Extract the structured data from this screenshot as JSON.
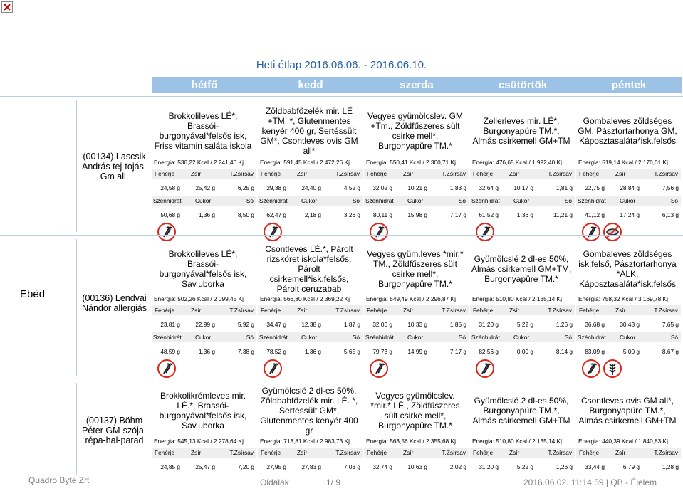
{
  "header": {
    "title": "Heti étlap 2016.06.06. - 2016.06.10."
  },
  "days": [
    "hétfő",
    "kedd",
    "szerda",
    "csütörtök",
    "péntek"
  ],
  "section_label": "Ebéd",
  "nutrient_labels": {
    "row1": [
      "Fehérje",
      "Zsír",
      "T.Zsírsav"
    ],
    "row2": [
      "Szénhidrát",
      "Cukor",
      "Só"
    ]
  },
  "menus": [
    {
      "name": [
        "(00134) Lascsik",
        "András tej-tojás-",
        "Gm all."
      ],
      "dishes": [
        [
          "Brokkolileves LÉ*,",
          "Brassói-",
          "burgonyával*felsős isk,",
          "Friss vitamin saláta iskola"
        ],
        [
          "Zöldbabfőzelék mir. LÉ",
          "+TM. *, Glutenmentes",
          "kenyér 400 gr, Sertéssült",
          "GM*, Csontleves ovis GM",
          "all*"
        ],
        [
          "Vegyes gyümölcslev. GM",
          "+Tm., Zöldfűszeres sült",
          "csirke mell*,",
          "Burgonyapüre TM.*"
        ],
        [
          "Zellerleves mir. LÉ*,",
          "Burgonyapüre TM.*,",
          "Almás csirkemell GM+TM"
        ],
        [
          "Gombaleves zöldséges",
          "GM, Pásztortarhonya GM,",
          "Káposztasaláta*isk.felsős"
        ]
      ],
      "energy": [
        "Energia: 536,22 Kcal / 2 241,40 Kj",
        "Energia: 591,45 Kcal / 2 472,26 Kj",
        "Energia: 550,41 Kcal / 2 300,71 Kj",
        "Energia: 476,65 Kcal / 1 992,40 Kj",
        "Energia: 519,14 Kcal / 2 170,01 Kj"
      ],
      "row1": [
        [
          "24,58 g",
          "25,42 g",
          "6,25 g"
        ],
        [
          "29,38 g",
          "24,40 g",
          "4,52 g"
        ],
        [
          "32,02 g",
          "10,21 g",
          "1,83 g"
        ],
        [
          "32,64 g",
          "10,17 g",
          "1,81 g"
        ],
        [
          "22,75 g",
          "28,84 g",
          "7,56 g"
        ]
      ],
      "row2": [
        [
          "50,68 g",
          "1,36 g",
          "8,50 g"
        ],
        [
          "62,47 g",
          "2,18 g",
          "3,26 g"
        ],
        [
          "80,11 g",
          "15,98 g",
          "7,17 g"
        ],
        [
          "61,52 g",
          "1,36 g",
          "11,21 g"
        ],
        [
          "41,12 g",
          "17,24 g",
          "6,13 g"
        ]
      ],
      "icons": [
        [
          "celery-icon"
        ],
        [
          "celery-icon"
        ],
        [
          "celery-icon"
        ],
        [
          "celery-icon"
        ],
        [
          "celery-icon",
          "no-gluten-icon"
        ]
      ]
    },
    {
      "name": [
        "(00136) Lendvai",
        "Nándor allergiás"
      ],
      "dishes": [
        [
          "Brokkolileves LÉ*,",
          "Brassói-",
          "burgonyával*felsős isk,",
          "Sav.uborka"
        ],
        [
          "Csontleves  LÉ.*, Párolt",
          "rizsköret iskola*felsős,",
          "Párolt",
          "csirkemell*isk.felsős,",
          "Párolt ceruzabab"
        ],
        [
          "Vegyes gyüm.leves *mir.*",
          "TM., Zöldfűszeres sült",
          "csirke mell*,",
          "Burgonyapüre TM.*"
        ],
        [
          "Gyümölcslé 2 dl-es 50%,",
          "Almás csirkemell GM+TM,",
          "Burgonyapüre TM.*"
        ],
        [
          "Gombaleves zöldséges",
          "isk.felső, Pásztortarhonya",
          "*ALK,",
          "Káposztasaláta*isk.felsős"
        ]
      ],
      "energy": [
        "Energia: 502,26 Kcal / 2 099,45 Kj",
        "Energia: 566,80 Kcal / 2 369,22 Kj",
        "Energia: 549,49 Kcal / 2 296,87 Kj",
        "Energia: 510,80 Kcal / 2 135,14 Kj",
        "Energia: 758,32 Kcal / 3 169,78 Kj"
      ],
      "row1": [
        [
          "23,81 g",
          "22,99 g",
          "5,92 g"
        ],
        [
          "34,47 g",
          "12,38 g",
          "1,87 g"
        ],
        [
          "32,06 g",
          "10,33 g",
          "1,85 g"
        ],
        [
          "31,20 g",
          "5,22 g",
          "1,26 g"
        ],
        [
          "36,68 g",
          "30,43 g",
          "7,65 g"
        ]
      ],
      "row2": [
        [
          "48,59 g",
          "1,36 g",
          "7,38 g"
        ],
        [
          "78,52 g",
          "1,36 g",
          "5,65 g"
        ],
        [
          "79,73 g",
          "14,99 g",
          "7,17 g"
        ],
        [
          "82,56 g",
          "0,00 g",
          "8,14 g"
        ],
        [
          "83,09 g",
          "5,00 g",
          "8,67 g"
        ]
      ],
      "icons": [
        [
          "celery-icon"
        ],
        [
          "celery-icon"
        ],
        [
          "celery-icon"
        ],
        [
          "celery-icon"
        ],
        [
          "celery-icon",
          "gluten-icon"
        ]
      ]
    },
    {
      "name": [
        "(00137) Böhm",
        "Péter GM-szója-",
        "répa-hal-parad"
      ],
      "dishes": [
        [
          "Brokkolikrémleves  mir.",
          "LÉ.*, Brassói-",
          "burgonyával*felsős isk,",
          "Sav.uborka"
        ],
        [
          "Gyümölcslé 2 dl-es 50%,",
          "Zöldbabfőzelék mir. LÉ. *,",
          "Sertéssült GM*,",
          "Glutenmentes kenyér 400",
          "gr"
        ],
        [
          "Vegyes gyümölcslev.",
          "*mir.* LÉ., Zöldfűszeres",
          "sült csirke mell*,",
          "Burgonyapüre TM.*"
        ],
        [
          "Gyümölcslé 2 dl-es 50%,",
          "Burgonyapüre TM.*,",
          "Almás csirkemell GM+TM"
        ],
        [
          "Csontleves ovis GM all*,",
          "Burgonyapüre TM.*,",
          "Almás csirkemell GM+TM"
        ]
      ],
      "energy": [
        "Energia: 545,13 Kcal / 2 278,64 Kj",
        "Energia: 713,81 Kcal / 2 983,73 Kj",
        "Energia: 563,56 Kcal / 2 355,68 Kj",
        "Energia: 510,80 Kcal / 2 135,14 Kj",
        "Energia: 440,39 Kcal / 1 840,83 Kj"
      ],
      "row1": [
        [
          "24,85 g",
          "25,47 g",
          "7,20 g"
        ],
        [
          "27,95 g",
          "27,83 g",
          "7,03 g"
        ],
        [
          "32,74 g",
          "10,63 g",
          "2,02 g"
        ],
        [
          "31,20 g",
          "5,22 g",
          "1,26 g"
        ],
        [
          "33,44 g",
          "6,79 g",
          "1,28 g"
        ]
      ]
    }
  ],
  "footer": {
    "brand": "Quadro Byte Zrt",
    "page_label": "Oldalak",
    "page_num": "1/ 9",
    "timestamp": "2016.06.02. 11:14:59 | QB - Élelem"
  },
  "colors": {
    "title": "#1f5fa8",
    "day_header": "#9cc3e6",
    "icon_red": "#d9281e"
  }
}
